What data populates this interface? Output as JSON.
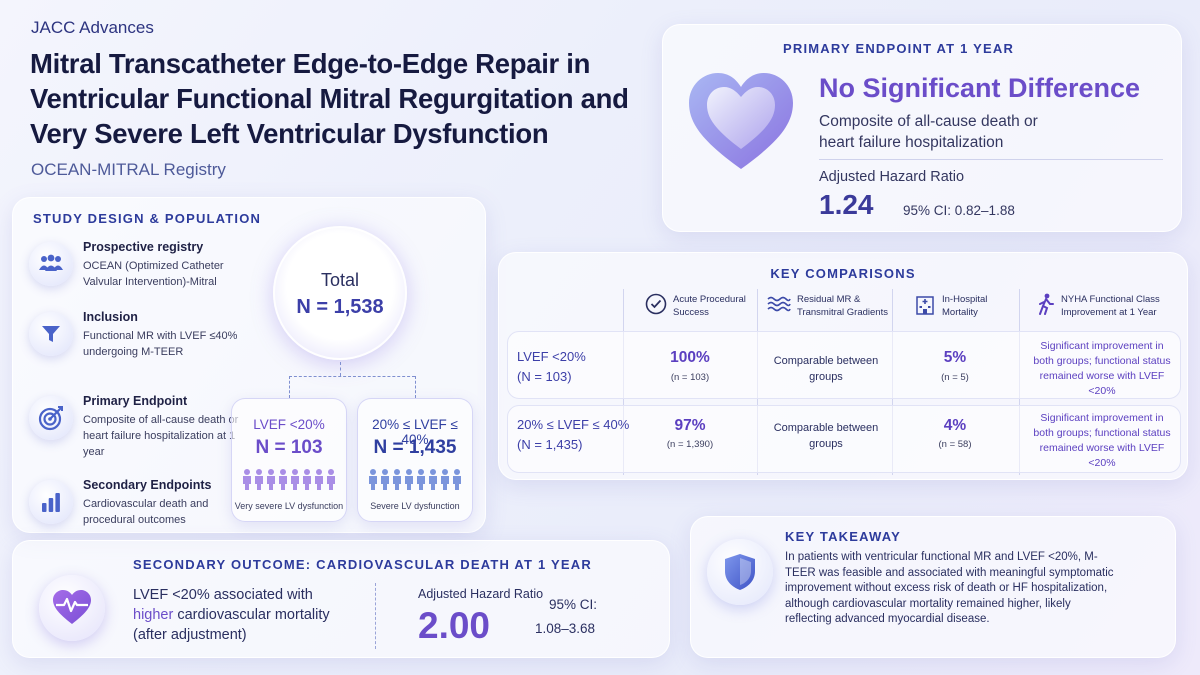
{
  "header": {
    "journal": "JACC Advances",
    "title": "Mitral Transcatheter Edge-to-Edge Repair in Ventricular Functional Mitral Regurgitation and Very Severe Left Ventricular Dysfunction",
    "registry": "OCEAN-MITRAL Registry"
  },
  "design": {
    "title": "STUDY DESIGN & POPULATION",
    "items": [
      {
        "icon": "group-icon",
        "heading": "Prospective registry",
        "body": "OCEAN (Optimized Catheter Valvular Intervention)-Mitral"
      },
      {
        "icon": "funnel-icon",
        "heading": "Inclusion",
        "body": "Functional MR with LVEF ≤40% undergoing M-TEER"
      },
      {
        "icon": "target-icon",
        "heading": "Primary Endpoint",
        "body": "Composite of all-cause death or heart failure hospitalization at 1 year"
      },
      {
        "icon": "bar-chart-icon",
        "heading": "Secondary Endpoints",
        "body": "Cardiovascular death and procedural outcomes"
      }
    ],
    "total_label": "Total",
    "total_n": "N = 1,538",
    "groups": [
      {
        "label": "LVEF <20%",
        "n": "N = 103",
        "desc": "Very severe LV dysfunction",
        "color": "#6b4dc9",
        "people_color": "#a98ee6"
      },
      {
        "label": "20% ≤ LVEF ≤ 40%",
        "n": "N = 1,435",
        "desc": "Severe LV dysfunction",
        "color": "#2f3fa0",
        "people_color": "#7b95dc"
      }
    ]
  },
  "primary": {
    "title": "PRIMARY ENDPOINT AT 1 YEAR",
    "result": "No Significant Difference",
    "desc": "Composite of all-cause death or heart failure hospitalization",
    "hr_label": "Adjusted Hazard Ratio",
    "hr": "1.24",
    "ci": "95% CI: 0.82–1.88",
    "icon": "heart-icon"
  },
  "comparisons": {
    "title": "KEY COMPARISONS",
    "columns": [
      {
        "icon": "check-circle-icon",
        "label": "Acute Procedural Success"
      },
      {
        "icon": "waves-icon",
        "label": "Residual MR & Transmitral Gradients"
      },
      {
        "icon": "hospital-icon",
        "label": "In-Hospital Mortality"
      },
      {
        "icon": "walking-icon",
        "label": "NYHA Functional Class Improvement at 1 Year"
      }
    ],
    "rows": [
      {
        "label": "LVEF <20%",
        "n": "(N = 103)",
        "success": "100%",
        "success_n": "(n = 103)",
        "residual": "Comparable between groups",
        "mortality": "5%",
        "mortality_n": "(n = 5)",
        "nyha": "Significant improvement in both groups; functional status remained worse with LVEF <20%"
      },
      {
        "label": "20% ≤ LVEF ≤ 40%",
        "n": "(N = 1,435)",
        "success": "97%",
        "success_n": "(n = 1,390)",
        "residual": "Comparable between groups",
        "mortality": "4%",
        "mortality_n": "(n = 58)",
        "nyha": "Significant improvement in both groups; functional status remained worse with LVEF <20%"
      }
    ]
  },
  "secondary": {
    "title": "SECONDARY OUTCOME: CARDIOVASCULAR DEATH AT 1 YEAR",
    "text_a": "LVEF <20% associated with",
    "text_hl": "higher",
    "text_b": "cardiovascular mortality (after adjustment)",
    "hr_label": "Adjusted Hazard Ratio",
    "hr": "2.00",
    "ci_label": "95% CI:",
    "ci": "1.08–3.68",
    "icon": "heart-pulse-icon"
  },
  "takeaway": {
    "title": "KEY TAKEAWAY",
    "text": "In patients with ventricular functional MR and LVEF <20%, M-TEER was feasible and associated with meaningful symptomatic improvement without excess risk of death or HF hospitalization, although cardiovascular mortality remained higher, likely reflecting advanced myocardial disease.",
    "icon": "shield-icon"
  }
}
